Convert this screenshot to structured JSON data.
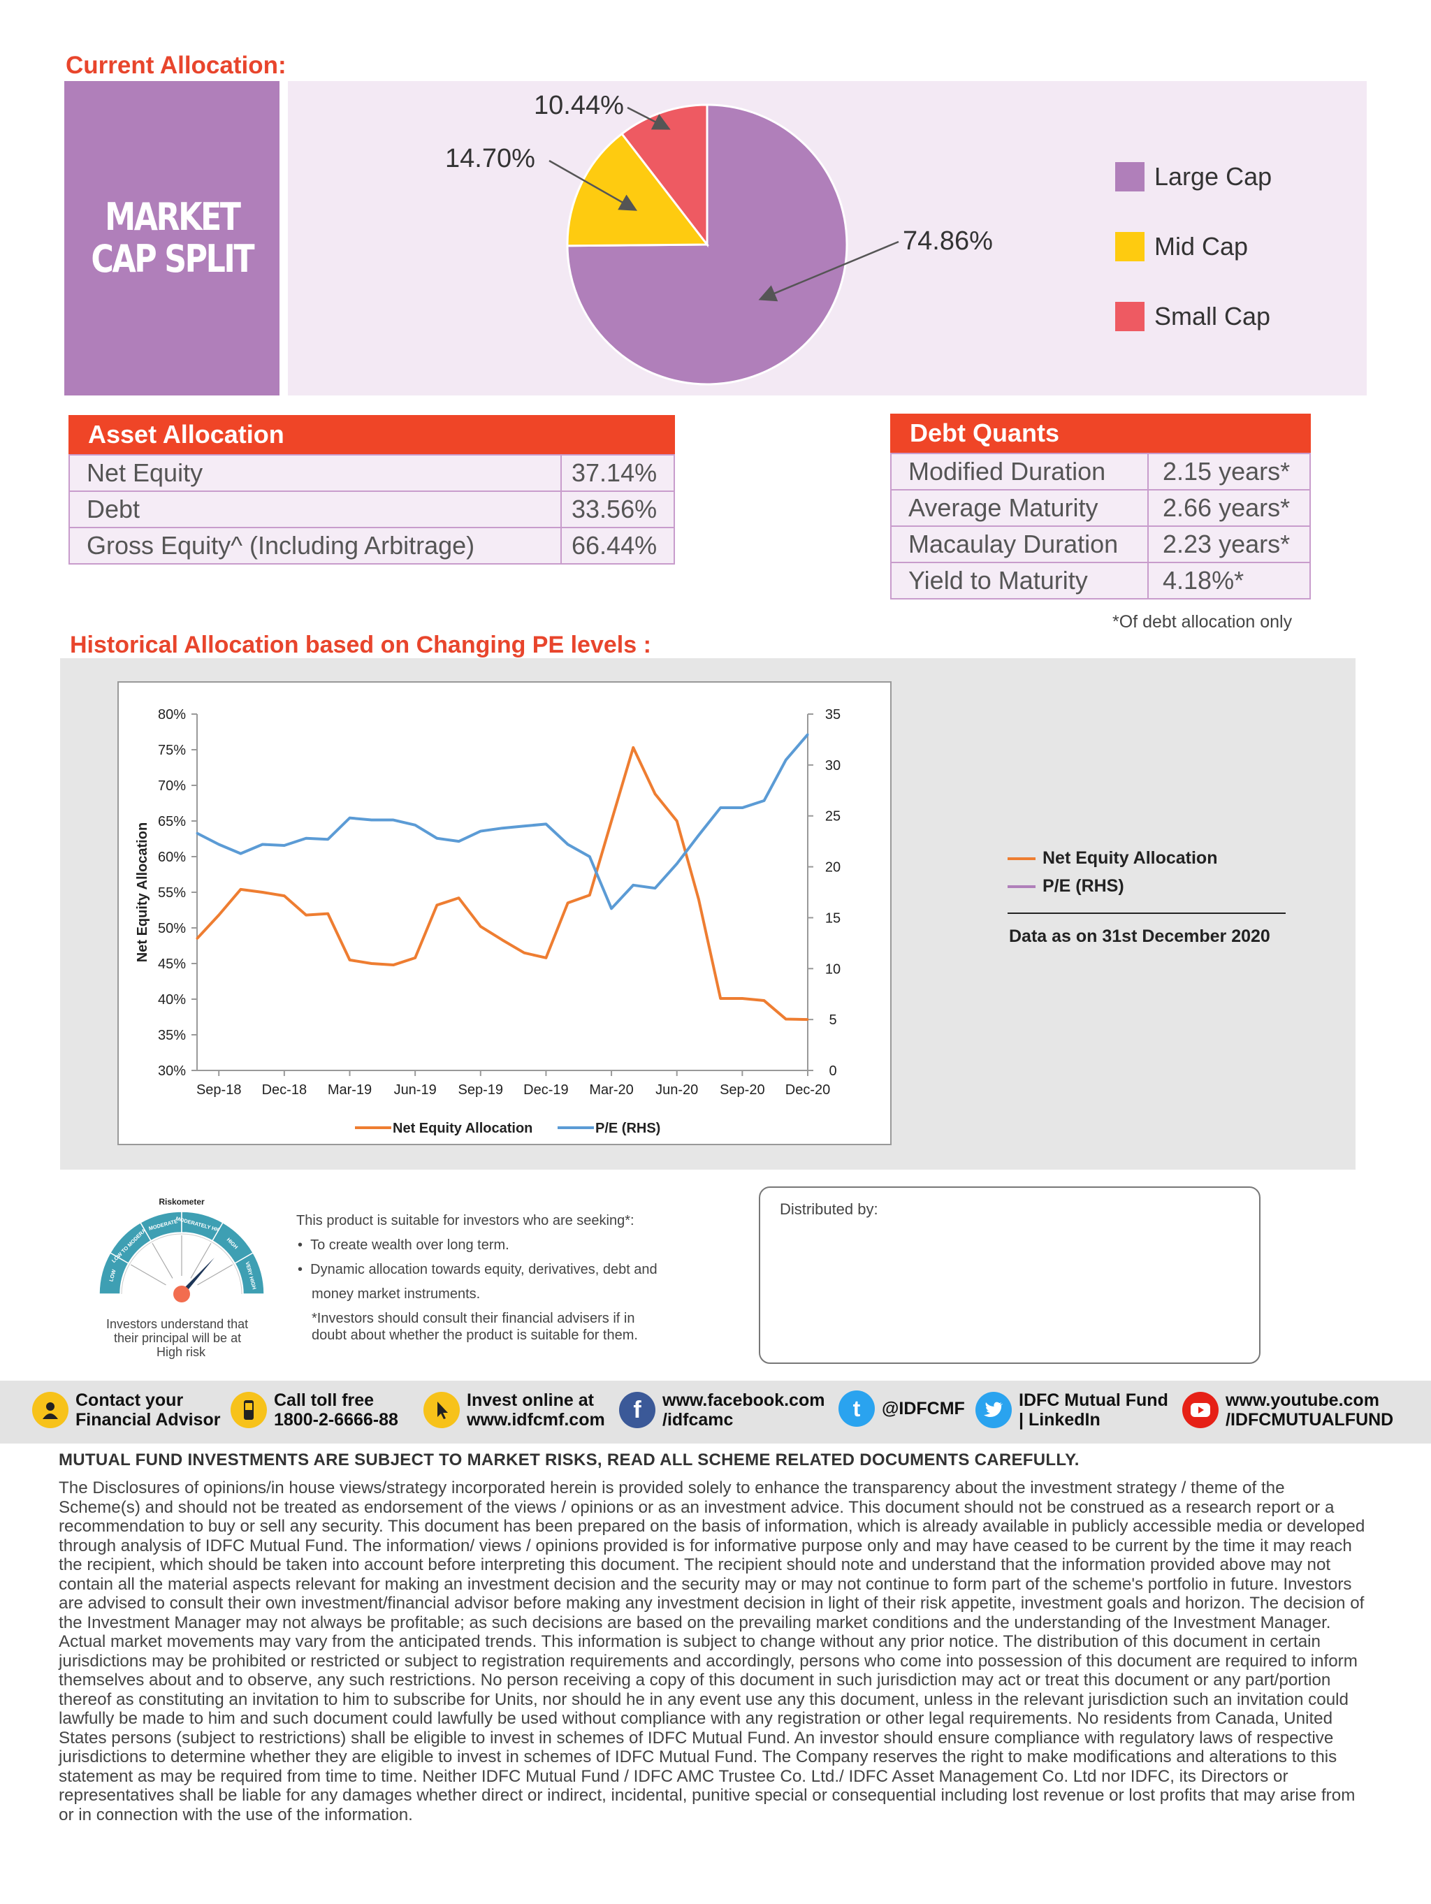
{
  "current_allocation": {
    "title": "Current Allocation:",
    "side_label_line1": "MARKET",
    "side_label_line2": "CAP SPLIT",
    "chart_data": {
      "type": "pie",
      "categories": [
        "Large Cap",
        "Mid Cap",
        "Small Cap"
      ],
      "values": [
        74.86,
        14.7,
        10.44
      ],
      "labels": [
        "74.86%",
        "14.70%",
        "10.44%"
      ],
      "colors": [
        "#b07fba",
        "#fecb10",
        "#ee5a62"
      ],
      "legend_placement": "right"
    }
  },
  "asset_allocation": {
    "title": "Asset Allocation",
    "rows": [
      {
        "label": "Net Equity",
        "value": "37.14%"
      },
      {
        "label": "Debt",
        "value": "33.56%"
      },
      {
        "label": "Gross Equity^ (Including Arbitrage)",
        "value": "66.44%"
      }
    ]
  },
  "debt_quants": {
    "title": "Debt Quants",
    "rows": [
      {
        "label": "Modified Duration",
        "value": "2.15 years*"
      },
      {
        "label": "Average Maturity",
        "value": "2.66 years*"
      },
      {
        "label": "Macaulay Duration",
        "value": "2.23 years*"
      },
      {
        "label": "Yield to Maturity",
        "value": "4.18%*"
      }
    ],
    "footnote": "*Of debt allocation only"
  },
  "historical": {
    "title": "Historical Allocation based on Changing PE levels :",
    "side_legend": [
      "Net Equity Allocation",
      "P/E (RHS)"
    ],
    "data_note": "Data as on 31st December 2020",
    "chart_data": {
      "type": "line",
      "ylabel": "Net Equity Allocation",
      "y_ticks": [
        "80%",
        "75%",
        "70%",
        "65%",
        "60%",
        "55%",
        "50%",
        "45%",
        "40%",
        "35%",
        "30%"
      ],
      "y2_ticks": [
        "35",
        "30",
        "25",
        "20",
        "15",
        "10",
        "5",
        "0"
      ],
      "x_ticks": [
        "Sep-18",
        "Dec-18",
        "Mar-19",
        "Jun-19",
        "Sep-19",
        "Dec-19",
        "Mar-20",
        "Jun-20",
        "Sep-20",
        "Dec-20"
      ],
      "ylim": [
        30,
        80
      ],
      "y2lim": [
        0,
        35
      ],
      "grid": false,
      "legend_placement": "bottom",
      "x_months": [
        "Aug-18",
        "Sep-18",
        "Oct-18",
        "Nov-18",
        "Dec-18",
        "Jan-19",
        "Feb-19",
        "Mar-19",
        "Apr-19",
        "May-19",
        "Jun-19",
        "Jul-19",
        "Aug-19",
        "Sep-19",
        "Oct-19",
        "Nov-19",
        "Dec-19",
        "Jan-20",
        "Feb-20",
        "Mar-20",
        "Apr-20",
        "May-20",
        "Jun-20",
        "Jul-20",
        "Aug-20",
        "Sep-20",
        "Oct-20",
        "Nov-20",
        "Dec-20"
      ],
      "series": [
        {
          "name": "Net Equity Allocation",
          "axis": "left",
          "color": "#ee7d31",
          "values": [
            48.5,
            51.8,
            55.4,
            55.0,
            54.5,
            51.8,
            52.0,
            45.5,
            45.0,
            44.8,
            45.8,
            53.2,
            54.2,
            50.2,
            48.3,
            46.5,
            45.8,
            53.5,
            54.6,
            65.0,
            75.3,
            68.8,
            65.0,
            54.0,
            40.1,
            40.1,
            39.8,
            37.2,
            37.14
          ]
        },
        {
          "name": "P/E (RHS)",
          "axis": "right",
          "color": "#5b9bd5",
          "values": [
            23.3,
            22.2,
            21.3,
            22.2,
            22.1,
            22.8,
            22.7,
            24.8,
            24.6,
            24.6,
            24.1,
            22.8,
            22.5,
            23.5,
            23.8,
            24.0,
            24.2,
            22.2,
            21.0,
            15.9,
            18.2,
            17.9,
            20.3,
            23.1,
            25.8,
            25.8,
            26.5,
            30.5,
            33.0
          ]
        }
      ]
    }
  },
  "riskometer": {
    "title": "Riskometer",
    "zones": [
      "LOW",
      "LOW TO MODERATE",
      "MODERATE",
      "MODERATELY HIGH",
      "HIGH",
      "VERY HIGH"
    ],
    "caption": [
      "Investors understand that",
      "their principal will be at",
      "High risk"
    ],
    "intro": "This product is suitable for investors who are seeking*:",
    "bullets": [
      "To create wealth over long term.",
      "Dynamic allocation towards equity, derivatives, debt and",
      "money market instruments."
    ],
    "note": [
      "*Investors should consult their financial advisers if in",
      "doubt about whether the product is suitable for them."
    ]
  },
  "distributed_by": "Distributed by:",
  "contacts": [
    {
      "icon": "person-icon",
      "line1": "Contact your",
      "line2": "Financial Advisor"
    },
    {
      "icon": "phone-icon",
      "line1": "Call toll free",
      "line2": "1800-2-6666-88"
    },
    {
      "icon": "cursor-icon",
      "line1": "Invest online at",
      "line2": "www.idfcmf.com"
    },
    {
      "icon": "facebook-icon",
      "line1": "www.facebook.com",
      "line2": "/idfcamc"
    },
    {
      "icon": "twitter-icon",
      "line1": "@IDFCMF",
      "line2": ""
    },
    {
      "icon": "linkedin-icon",
      "line1": "IDFC Mutual Fund",
      "line2": "| LinkedIn"
    },
    {
      "icon": "youtube-icon",
      "line1": "www.youtube.com",
      "line2": "/IDFCMUTUALFUND"
    }
  ],
  "disclaimer_head": "MUTUAL FUND INVESTMENTS ARE SUBJECT TO MARKET RISKS, READ ALL SCHEME RELATED DOCUMENTS CAREFULLY.",
  "disclaimer": "The Disclosures of opinions/in house views/strategy incorporated herein is provided solely to enhance the transparency about the investment strategy / theme of the Scheme(s) and should not be treated as endorsement of the views / opinions or as an investment advice. This document should not be construed as a research report or a recommendation to buy or sell any security. This document has been prepared on the basis of information, which is already available in publicly accessible media or developed through analysis of IDFC Mutual Fund. The information/ views / opinions provided is for informative purpose only and may have ceased to be current by the time it may reach the recipient, which should be taken into account before interpreting this document. The recipient should note and understand that the information provided above may not contain all the material aspects relevant for making an investment decision and the security may or may not continue to form part of the scheme's portfolio in future. Investors are advised to consult their own investment/financial advisor before making any investment decision in light of their risk appetite, investment goals and horizon. The decision of the Investment Manager may not always be profitable; as such decisions are based on the prevailing market conditions and the understanding of the Investment Manager. Actual market movements may vary from the anticipated trends. This information is subject to change without any prior notice. The distribution of this document in certain jurisdictions may be prohibited or restricted or subject to registration requirements and accordingly, persons who come into possession of this document are required to inform themselves about and to observe, any such restrictions. No person receiving a copy of this document in such jurisdiction may act or treat this document or any part/portion thereof as constituting an invitation to him to subscribe for Units, nor should he in any event use any this document, unless in the relevant jurisdiction such an invitation could lawfully be made to him and such document could lawfully be used without compliance with any registration or other legal requirements. No residents from Canada, United States persons (subject to restrictions) shall be eligible to invest in schemes of IDFC Mutual Fund. An investor should ensure compliance with regulatory laws of respective jurisdictions to determine whether they are eligible to invest in schemes of IDFC Mutual Fund. The Company reserves the right to make modifications and alterations to this statement as may be required from time to time. Neither IDFC Mutual Fund / IDFC AMC Trustee Co. Ltd./ IDFC Asset Management Co. Ltd nor IDFC, its Directors or representatives shall be liable for any damages whether direct or indirect, incidental, punitive special or consequential including lost revenue or lost profits that may arise from or in connection with the use of the information."
}
